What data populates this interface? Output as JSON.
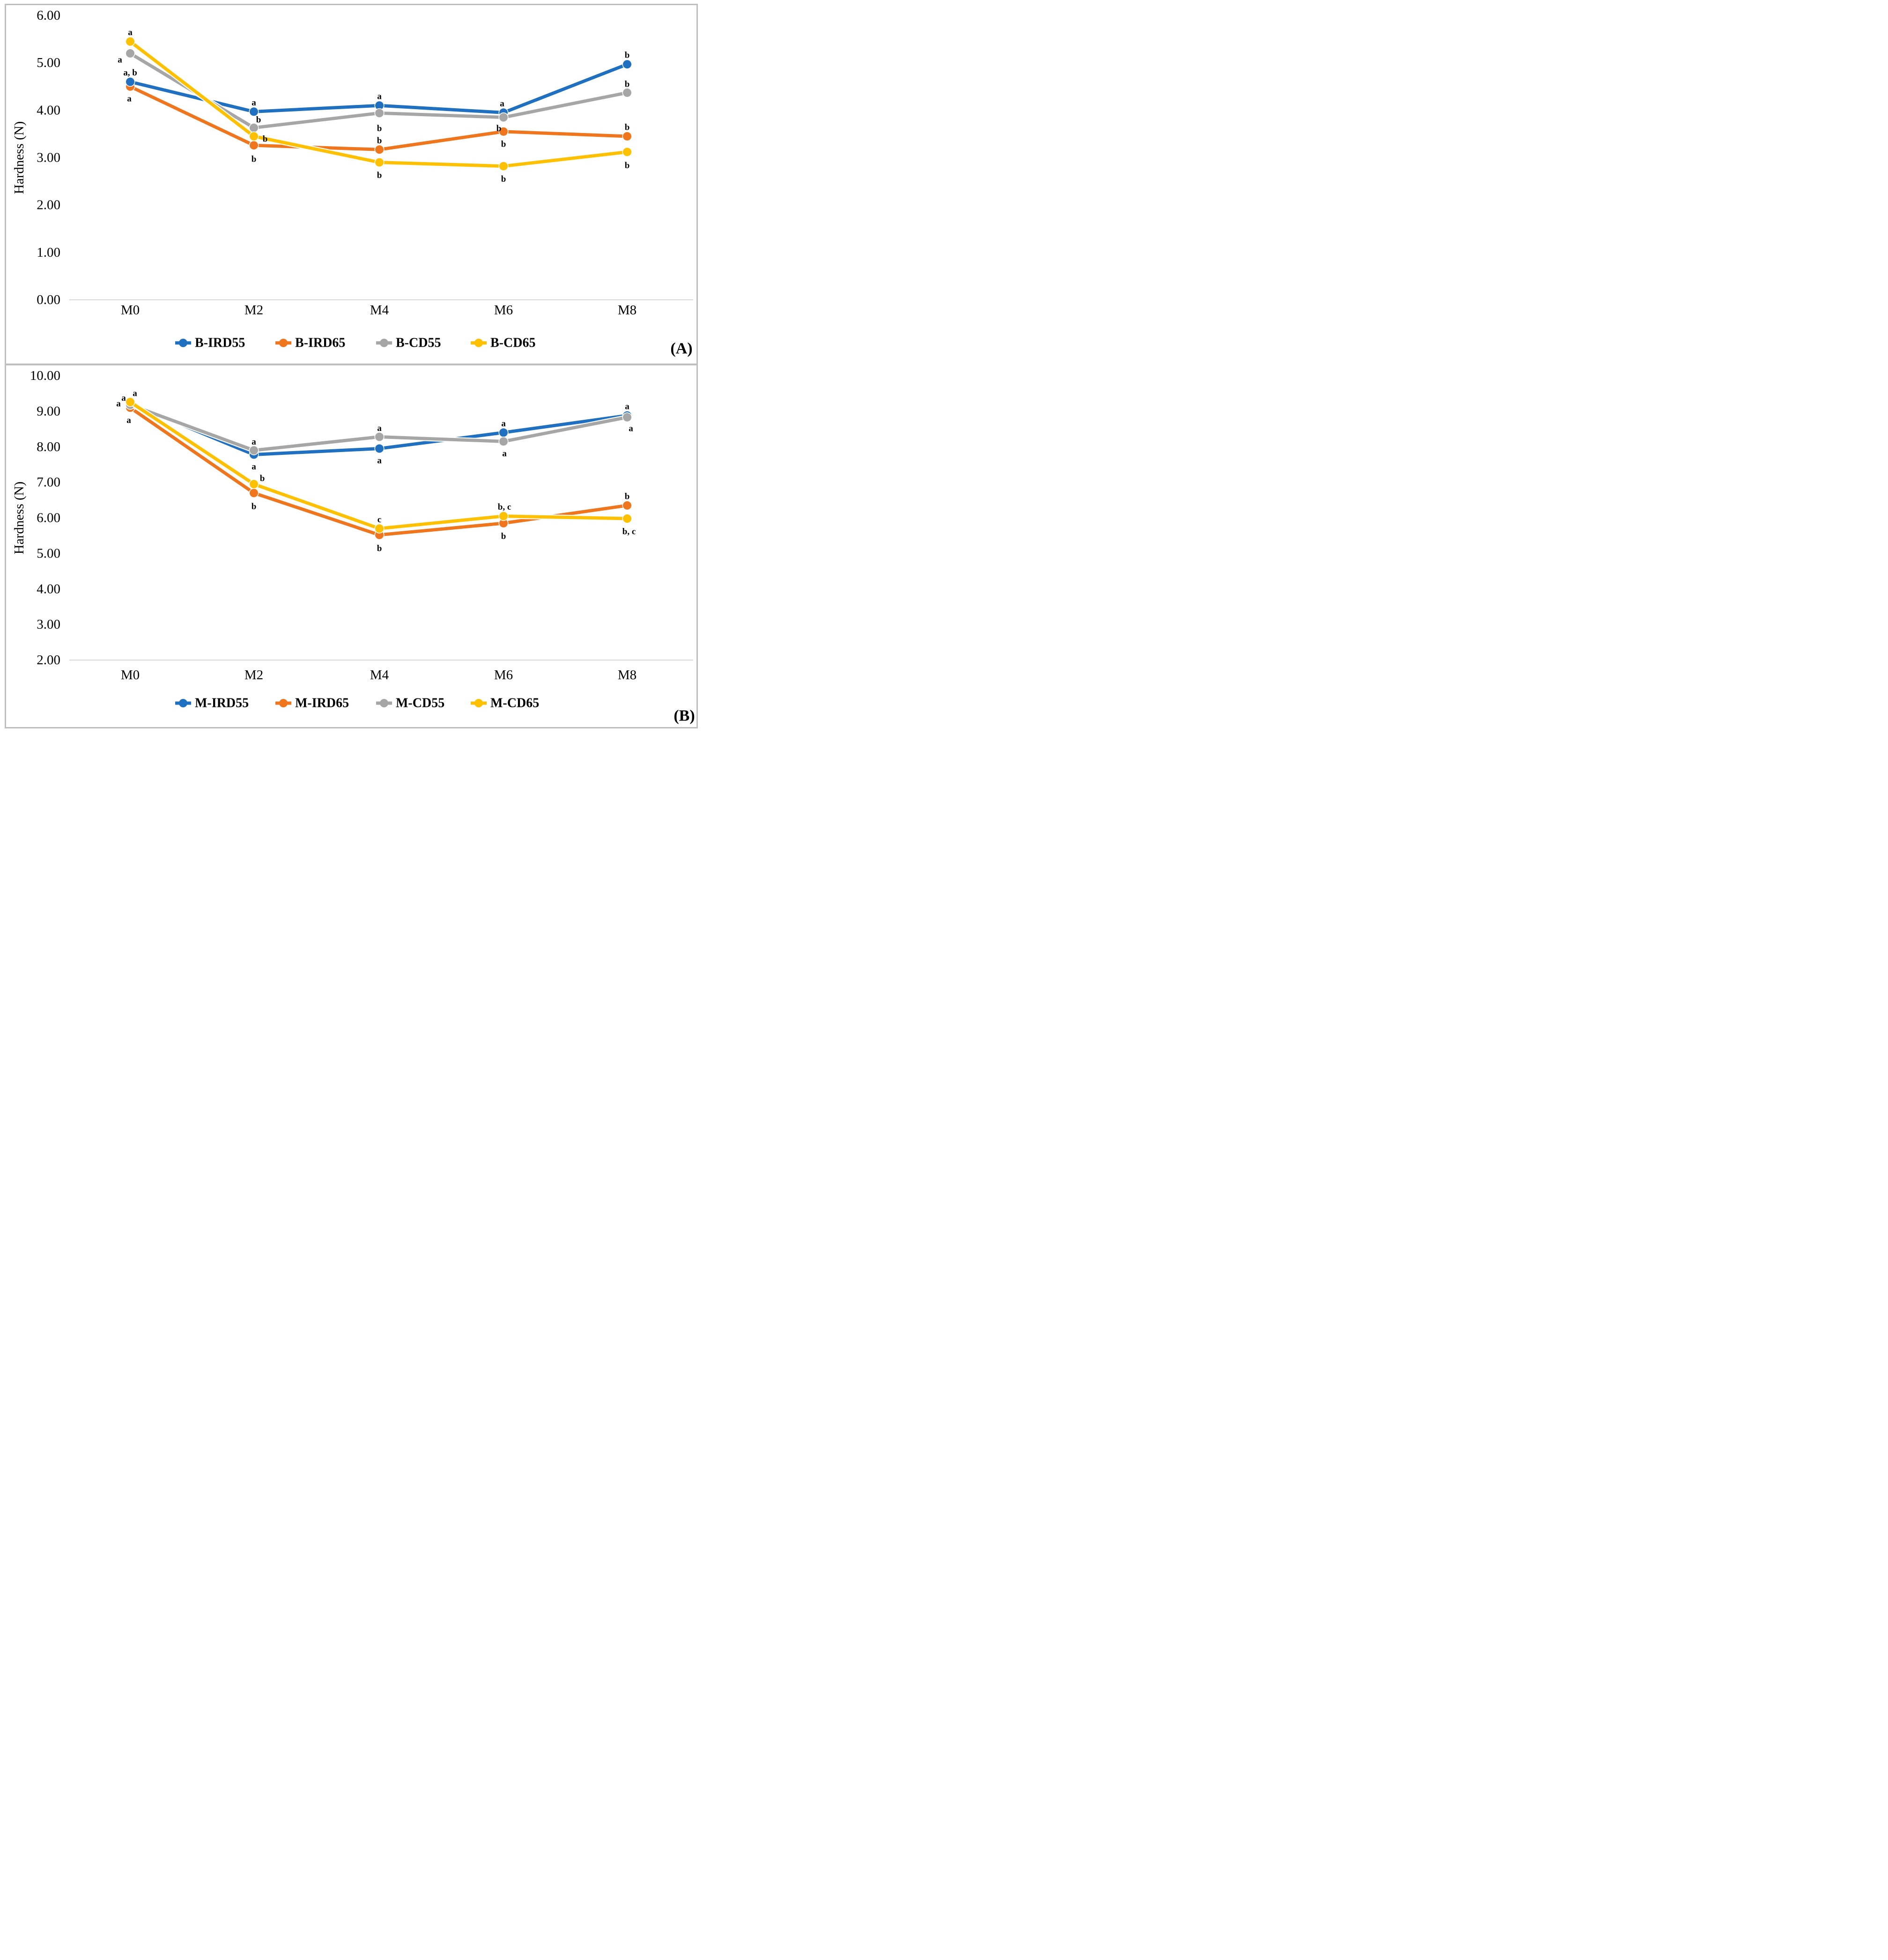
{
  "figure": {
    "description": "Two stacked line charts of hardness over storage months",
    "border_color": "#BFBFBF",
    "background_color": "#FFFFFF",
    "axis_line_color": "#D9D9D9"
  },
  "chart_data": [
    {
      "type": "line",
      "panel_label": "(A)",
      "title": "",
      "xlabel": "",
      "ylabel": "Hardness (N)",
      "ylim": [
        0,
        6
      ],
      "ytick_step": 1,
      "ytick_labels": [
        "6.00",
        "5.00",
        "4.00",
        "3.00",
        "2.00",
        "1.00",
        "0.00"
      ],
      "categories": [
        "M0",
        "M2",
        "M4",
        "M6",
        "M8"
      ],
      "grid": false,
      "legend_position": "bottom",
      "draw_order": [
        1,
        0,
        2,
        3
      ],
      "series": [
        {
          "name": "B-IRD55",
          "color": "#1F70C1",
          "values": [
            4.6,
            3.97,
            4.1,
            3.95,
            4.97
          ],
          "point_labels": [
            {
              "t": "a, b",
              "dx": 0,
              "dy": -19
            },
            {
              "t": "a",
              "dx": 0,
              "dy": -19
            },
            {
              "t": "a",
              "dx": 0,
              "dy": -19
            },
            {
              "t": "a",
              "dx": -3,
              "dy": -19
            },
            {
              "t": "b",
              "dx": 0,
              "dy": -19
            }
          ]
        },
        {
          "name": "B-IRD65",
          "color": "#F0761E",
          "values": [
            4.5,
            3.26,
            3.17,
            3.55,
            3.45
          ],
          "point_labels": [
            {
              "t": "a",
              "dx": -2,
              "dy": 26
            },
            {
              "t": "b",
              "dx": 0,
              "dy": 30
            },
            {
              "t": "b",
              "dx": 0,
              "dy": -19
            },
            {
              "t": "b",
              "dx": 0,
              "dy": 27
            },
            {
              "t": "b",
              "dx": 0,
              "dy": -19
            }
          ]
        },
        {
          "name": "B-CD55",
          "color": "#A6A6A6",
          "values": [
            5.2,
            3.63,
            3.94,
            3.85,
            4.37
          ],
          "point_labels": [
            {
              "t": "a",
              "dx": -22,
              "dy": 14
            },
            {
              "t": "b",
              "dx": 10,
              "dy": -17
            },
            {
              "t": "b",
              "dx": 0,
              "dy": 33
            },
            {
              "t": "b",
              "dx": -10,
              "dy": 24
            },
            {
              "t": "b",
              "dx": 0,
              "dy": -18
            }
          ]
        },
        {
          "name": "B-CD65",
          "color": "#FFC000",
          "values": [
            5.45,
            3.45,
            2.9,
            2.82,
            3.12
          ],
          "point_labels": [
            {
              "t": "a",
              "dx": 0,
              "dy": -19
            },
            {
              "t": "b",
              "dx": 24,
              "dy": 6
            },
            {
              "t": "b",
              "dx": 0,
              "dy": 28
            },
            {
              "t": "b",
              "dx": 0,
              "dy": 28
            },
            {
              "t": "b",
              "dx": 0,
              "dy": 29
            }
          ]
        }
      ]
    },
    {
      "type": "line",
      "panel_label": "(B)",
      "title": "",
      "xlabel": "",
      "ylabel": "Hardness (N)",
      "ylim": [
        2,
        10
      ],
      "ytick_step": 1,
      "ytick_labels": [
        "10.00",
        "9.00",
        "8.00",
        "7.00",
        "6.00",
        "5.00",
        "4.00",
        "3.00",
        "2.00"
      ],
      "categories": [
        "M0",
        "M2",
        "M4",
        "M6",
        "M8"
      ],
      "grid": false,
      "legend_position": "bottom",
      "draw_order": [
        0,
        1,
        2,
        3
      ],
      "series": [
        {
          "name": "M-IRD55",
          "color": "#1F70C1",
          "values": [
            9.22,
            7.78,
            7.95,
            8.4,
            8.88
          ],
          "point_labels": [
            {
              "t": "a",
              "dx": 10,
              "dy": -21
            },
            {
              "t": "a",
              "dx": 0,
              "dy": 26
            },
            {
              "t": "a",
              "dx": 0,
              "dy": 26
            },
            {
              "t": "a",
              "dx": 0,
              "dy": -19
            },
            {
              "t": "a",
              "dx": 0,
              "dy": -19
            }
          ]
        },
        {
          "name": "M-IRD65",
          "color": "#F0761E",
          "values": [
            9.1,
            6.7,
            5.52,
            5.85,
            6.35
          ],
          "point_labels": [
            {
              "t": "a",
              "dx": -3,
              "dy": 27
            },
            {
              "t": "b",
              "dx": 0,
              "dy": 29
            },
            {
              "t": "b",
              "dx": 0,
              "dy": 29
            },
            {
              "t": "b",
              "dx": 0,
              "dy": 28
            },
            {
              "t": "b",
              "dx": 0,
              "dy": -19
            }
          ]
        },
        {
          "name": "M-CD55",
          "color": "#A6A6A6",
          "values": [
            9.18,
            7.9,
            8.28,
            8.15,
            8.83
          ],
          "point_labels": [
            {
              "t": "a",
              "dx": -14,
              "dy": -14
            },
            {
              "t": "a",
              "dx": 0,
              "dy": -18
            },
            {
              "t": "a",
              "dx": 0,
              "dy": -18
            },
            {
              "t": "a",
              "dx": 2,
              "dy": 26
            },
            {
              "t": "a",
              "dx": 8,
              "dy": 24
            }
          ]
        },
        {
          "name": "M-CD65",
          "color": "#FFC000",
          "values": [
            9.26,
            6.95,
            5.7,
            6.05,
            5.98
          ],
          "point_labels": [
            {
              "t": "a",
              "dx": -25,
              "dy": 4
            },
            {
              "t": "b",
              "dx": 18,
              "dy": -12
            },
            {
              "t": "c",
              "dx": 0,
              "dy": -19
            },
            {
              "t": "b, c",
              "dx": 2,
              "dy": -19
            },
            {
              "t": "b, c",
              "dx": 4,
              "dy": 28
            }
          ]
        }
      ]
    }
  ]
}
